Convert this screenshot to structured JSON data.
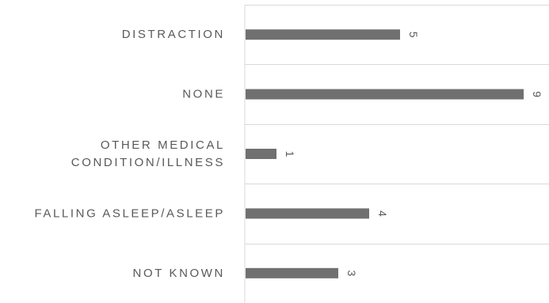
{
  "chart_data": {
    "type": "bar",
    "orientation": "horizontal",
    "categories": [
      "DISTRACTION",
      "NONE",
      "OTHER MEDICAL CONDITION/ILLNESS",
      "FALLING ASLEEP/ASLEEP",
      "NOT KNOWN"
    ],
    "category_label_lines": [
      [
        "DISTRACTION"
      ],
      [
        "NONE"
      ],
      [
        "OTHER MEDICAL",
        "CONDITION/ILLNESS"
      ],
      [
        "FALLING ASLEEP/ASLEEP"
      ],
      [
        "NOT KNOWN"
      ]
    ],
    "values": [
      5,
      9,
      1,
      4,
      3
    ],
    "value_labels": [
      "5",
      "9",
      "1",
      "4",
      "3"
    ],
    "value_label_rotation": "90deg clockwise",
    "title": "",
    "xlabel": "",
    "ylabel": "",
    "xlim": [
      0,
      10
    ],
    "grid": "horizontal category separators",
    "legend": "none",
    "colors": {
      "bar": "#707070",
      "grid": "#d9d9d9",
      "text": "#595959"
    }
  }
}
